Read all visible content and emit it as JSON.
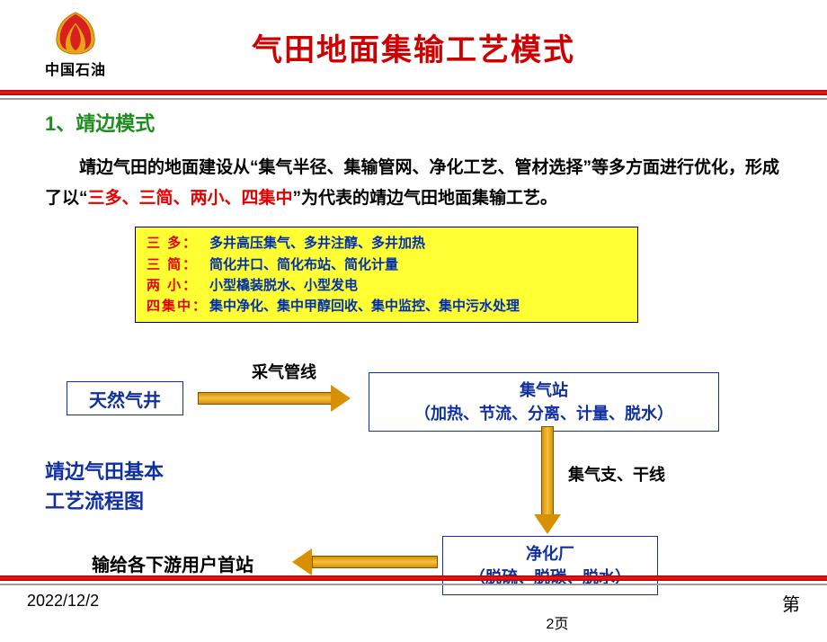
{
  "header": {
    "logo_text": "中国石油",
    "title": "气田地面集输工艺模式",
    "title_color": "#d00000"
  },
  "section": {
    "num_label": "1、靖边模式",
    "num_color": "#1e8c1e"
  },
  "paragraph": {
    "p1": "靖边气田的地面建设从",
    "p2": "集气半径、集输管网、净化工艺、管材选择",
    "p3": "等多方面进行优化，形成了以",
    "p4": "三多、三简、两小、四集中",
    "p5": "为代表的靖边气田地面集输工艺。",
    "open_quote": "“",
    "close_quote": "”"
  },
  "principles": {
    "bg_color": "#ffff33",
    "rows": [
      {
        "key": "三 多：",
        "key_color": "#e60000",
        "val": "多井高压集气、多井注醇、多井加热"
      },
      {
        "key": "三 简：",
        "key_color": "#e60000",
        "val": "简化井口、简化布站、简化计量"
      },
      {
        "key": "两 小：",
        "key_color": "#e60000",
        "val": "小型橇装脱水、小型发电"
      },
      {
        "key": "四集中：",
        "key_color": "#e60000",
        "val": "集中净化、集中甲醇回收、集中监控、集中污水处理"
      }
    ]
  },
  "flow": {
    "node_well": "天然气井",
    "node_station_l1": "集气站",
    "node_station_l2": "（加热、节流、分离、计量、脱水）",
    "node_plant_l1": "净化厂",
    "node_plant_l2": "（脱硫、脱碳、脱水）",
    "edge_a": "采气管线",
    "edge_b": "集气支、干线",
    "edge_c": "输给各下游用户首站",
    "caption_l1": "靖边气田基本",
    "caption_l2": "工艺流程图",
    "node_border": "#1030a0",
    "arrow_color": "#d89000"
  },
  "footer": {
    "date": "2022/12/2",
    "page_prefix": "第",
    "page_suffix": "2页"
  }
}
